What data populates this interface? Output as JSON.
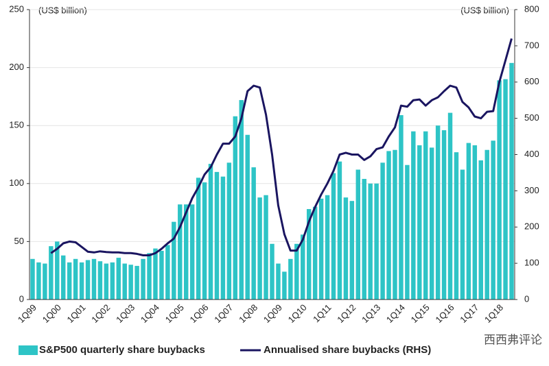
{
  "chart_data": {
    "type": "bar_line",
    "y_label": "(US$ billion)",
    "y2_label": "(US$ billion)",
    "categories": [
      "1Q99",
      null,
      null,
      null,
      "1Q00",
      null,
      null,
      null,
      "1Q01",
      null,
      null,
      null,
      "1Q02",
      null,
      null,
      null,
      "1Q03",
      null,
      null,
      null,
      "1Q04",
      null,
      null,
      null,
      "1Q05",
      null,
      null,
      null,
      "1Q06",
      null,
      null,
      null,
      "1Q07",
      null,
      null,
      null,
      "1Q08",
      null,
      null,
      null,
      "1Q09",
      null,
      null,
      null,
      "1Q10",
      null,
      null,
      null,
      "1Q11",
      null,
      null,
      null,
      "1Q12",
      null,
      null,
      null,
      "1Q13",
      null,
      null,
      null,
      "1Q14",
      null,
      null,
      null,
      "1Q15",
      null,
      null,
      null,
      "1Q16",
      null,
      null,
      null,
      "1Q17",
      null,
      null,
      null,
      "1Q18",
      null,
      null
    ],
    "series": [
      {
        "name": "S&P500 quarterly share buybacks",
        "type": "bar",
        "color": "#2ec4c6",
        "values": [
          35,
          32,
          31,
          46,
          50,
          38,
          32,
          35,
          32,
          34,
          35,
          33,
          31,
          32,
          36,
          31,
          30,
          29,
          35,
          40,
          44,
          42,
          47,
          67,
          82,
          82,
          82,
          105,
          101,
          117,
          110,
          106,
          118,
          158,
          172,
          142,
          114,
          88,
          90,
          48,
          31,
          24,
          35,
          48,
          56,
          78,
          80,
          87,
          90,
          109,
          119,
          88,
          85,
          112,
          104,
          100,
          100,
          118,
          128,
          129,
          159,
          116,
          145,
          133,
          145,
          131,
          150,
          146,
          161,
          127,
          112,
          135,
          133,
          120,
          129,
          137,
          189,
          190,
          204
        ]
      },
      {
        "name": "Annualised share buybacks (RHS)",
        "type": "line",
        "axis": "y2",
        "color": "#1a1560",
        "values": [
          null,
          null,
          null,
          128,
          140,
          155,
          160,
          158,
          145,
          132,
          130,
          133,
          131,
          130,
          130,
          128,
          128,
          126,
          122,
          122,
          128,
          140,
          155,
          168,
          200,
          240,
          280,
          310,
          345,
          365,
          400,
          430,
          430,
          450,
          500,
          575,
          590,
          585,
          510,
          400,
          260,
          180,
          135,
          135,
          165,
          215,
          255,
          290,
          320,
          355,
          400,
          405,
          400,
          400,
          385,
          395,
          415,
          420,
          450,
          475,
          535,
          532,
          550,
          552,
          535,
          550,
          558,
          575,
          590,
          585,
          545,
          530,
          505,
          500,
          518,
          520,
          600,
          660,
          720
        ]
      }
    ],
    "ylim": [
      0,
      250
    ],
    "yticks": [
      0,
      50,
      100,
      150,
      200,
      250
    ],
    "y2lim": [
      0,
      800
    ],
    "y2ticks": [
      0,
      100,
      200,
      300,
      400,
      500,
      600,
      700,
      800
    ],
    "grid": true,
    "legend": "bottom",
    "watermark": "西西弗评论"
  }
}
